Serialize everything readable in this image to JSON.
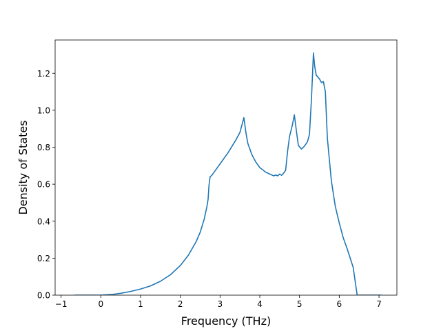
{
  "chart_data": {
    "type": "line",
    "xlabel": "Frequency (THz)",
    "ylabel": "Density of States",
    "xlim": [
      -1.15,
      7.45
    ],
    "ylim": [
      0.0,
      1.38
    ],
    "xticks": [
      -1,
      0,
      1,
      2,
      3,
      4,
      5,
      6,
      7
    ],
    "yticks": [
      0.0,
      0.2,
      0.4,
      0.6,
      0.8,
      1.0,
      1.2
    ],
    "xtick_labels": [
      "−1",
      "0",
      "1",
      "2",
      "3",
      "4",
      "5",
      "6",
      "7"
    ],
    "ytick_labels": [
      "0.0",
      "0.2",
      "0.4",
      "0.6",
      "0.8",
      "1.0",
      "1.2"
    ],
    "grid": false,
    "series": [
      {
        "color": "#1f77b4",
        "points": [
          [
            -0.65,
            0.0
          ],
          [
            0.0,
            0.0
          ],
          [
            0.3,
            0.004
          ],
          [
            0.5,
            0.01
          ],
          [
            0.75,
            0.02
          ],
          [
            1.0,
            0.033
          ],
          [
            1.25,
            0.05
          ],
          [
            1.5,
            0.075
          ],
          [
            1.75,
            0.11
          ],
          [
            2.0,
            0.16
          ],
          [
            2.2,
            0.215
          ],
          [
            2.4,
            0.29
          ],
          [
            2.5,
            0.34
          ],
          [
            2.6,
            0.41
          ],
          [
            2.67,
            0.48
          ],
          [
            2.7,
            0.52
          ],
          [
            2.72,
            0.59
          ],
          [
            2.75,
            0.64
          ],
          [
            2.8,
            0.65
          ],
          [
            2.9,
            0.68
          ],
          [
            3.0,
            0.71
          ],
          [
            3.2,
            0.77
          ],
          [
            3.4,
            0.84
          ],
          [
            3.5,
            0.88
          ],
          [
            3.6,
            0.96
          ],
          [
            3.65,
            0.88
          ],
          [
            3.7,
            0.82
          ],
          [
            3.8,
            0.76
          ],
          [
            3.9,
            0.72
          ],
          [
            4.0,
            0.69
          ],
          [
            4.15,
            0.665
          ],
          [
            4.25,
            0.655
          ],
          [
            4.35,
            0.645
          ],
          [
            4.4,
            0.65
          ],
          [
            4.45,
            0.645
          ],
          [
            4.5,
            0.655
          ],
          [
            4.55,
            0.648
          ],
          [
            4.6,
            0.66
          ],
          [
            4.65,
            0.675
          ],
          [
            4.7,
            0.78
          ],
          [
            4.75,
            0.86
          ],
          [
            4.82,
            0.92
          ],
          [
            4.87,
            0.975
          ],
          [
            4.92,
            0.89
          ],
          [
            4.97,
            0.81
          ],
          [
            5.05,
            0.79
          ],
          [
            5.12,
            0.805
          ],
          [
            5.2,
            0.83
          ],
          [
            5.25,
            0.87
          ],
          [
            5.3,
            1.06
          ],
          [
            5.35,
            1.31
          ],
          [
            5.38,
            1.24
          ],
          [
            5.42,
            1.19
          ],
          [
            5.5,
            1.17
          ],
          [
            5.55,
            1.15
          ],
          [
            5.6,
            1.155
          ],
          [
            5.65,
            1.1
          ],
          [
            5.7,
            0.85
          ],
          [
            5.8,
            0.62
          ],
          [
            5.9,
            0.48
          ],
          [
            6.0,
            0.39
          ],
          [
            6.1,
            0.31
          ],
          [
            6.2,
            0.25
          ],
          [
            6.35,
            0.15
          ],
          [
            6.45,
            0.0
          ],
          [
            7.05,
            0.0
          ]
        ]
      }
    ]
  }
}
